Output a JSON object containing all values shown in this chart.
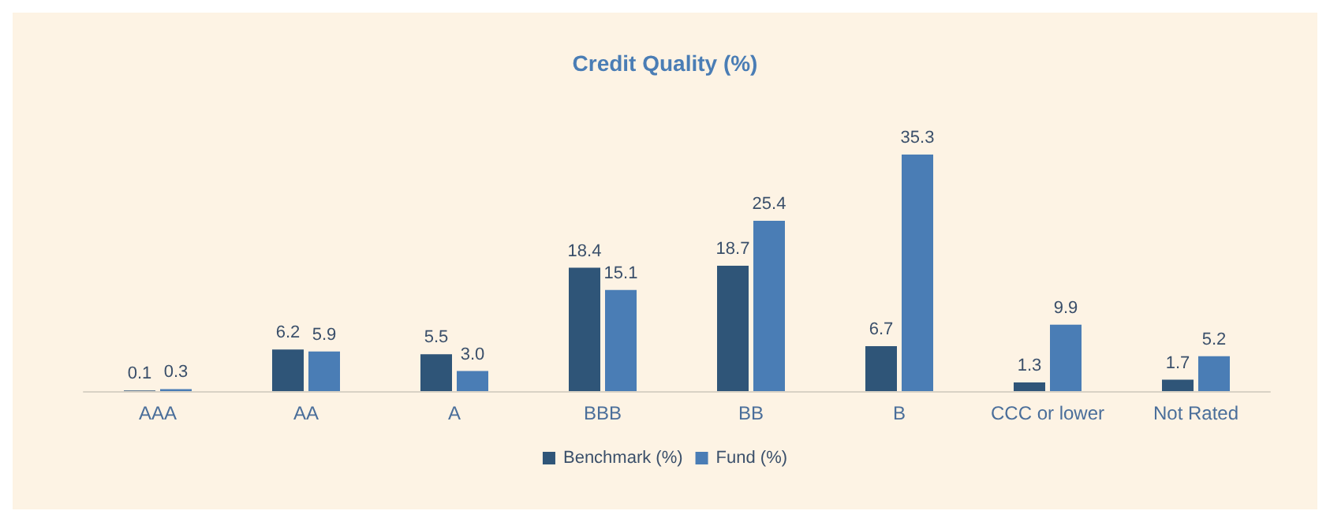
{
  "chart_data": {
    "type": "bar",
    "title": "Credit Quality (%)",
    "categories": [
      "AAA",
      "AA",
      "A",
      "BBB",
      "BB",
      "B",
      "CCC or lower",
      "Not Rated"
    ],
    "series": [
      {
        "name": "Benchmark (%)",
        "color": "#2f5578",
        "values": [
          0.1,
          6.2,
          5.5,
          18.4,
          18.7,
          6.7,
          1.3,
          1.7
        ],
        "value_labels": [
          "0.1",
          "6.2",
          "5.5",
          "18.4",
          "18.7",
          "6.7",
          "1.3",
          "1.7"
        ]
      },
      {
        "name": "Fund (%)",
        "color": "#4a7db5",
        "values": [
          0.3,
          5.9,
          3.0,
          15.1,
          25.4,
          35.3,
          9.9,
          5.2
        ],
        "value_labels": [
          "0.3",
          "5.9",
          "3.0",
          "15.1",
          "25.4",
          "35.3",
          "9.9",
          "5.2"
        ]
      }
    ],
    "legend": "bottom"
  }
}
